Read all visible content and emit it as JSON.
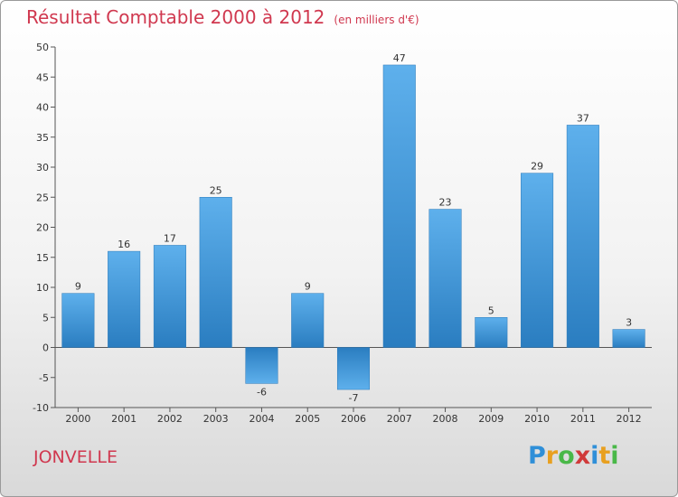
{
  "header": {
    "title": "Résultat Comptable 2000 à 2012",
    "subtitle": "(en milliers d'€)"
  },
  "footer": {
    "commune": "JONVELLE",
    "logo": {
      "letters": [
        "P",
        "r",
        "o",
        "x",
        "i",
        "t",
        "i"
      ],
      "colors": [
        "#2f8fd8",
        "#e8a020",
        "#49b848",
        "#d03a3a",
        "#2f8fd8",
        "#e8a020",
        "#49b848"
      ]
    }
  },
  "chart_data": {
    "type": "bar",
    "title": "Résultat Comptable 2000 à 2012",
    "subtitle": "(en milliers d'€)",
    "categories": [
      "2000",
      "2001",
      "2002",
      "2003",
      "2004",
      "2005",
      "2006",
      "2007",
      "2008",
      "2009",
      "2010",
      "2011",
      "2012"
    ],
    "values": [
      9,
      16,
      17,
      25,
      -6,
      9,
      -7,
      47,
      23,
      5,
      29,
      37,
      3
    ],
    "xlabel": "",
    "ylabel": "",
    "ylim": [
      -10,
      50
    ],
    "yticks": [
      -10,
      -5,
      0,
      5,
      10,
      15,
      20,
      25,
      30,
      35,
      40,
      45,
      50
    ],
    "grid": false,
    "bar_color": "#3f98dc"
  }
}
